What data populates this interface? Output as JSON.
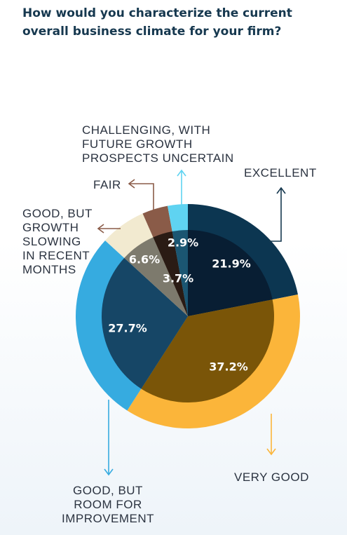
{
  "title": {
    "line1": "How would you characterize the current",
    "line2": "overall business climate for your firm?"
  },
  "chart_data": {
    "type": "pie",
    "title": "How would you characterize the current overall business climate for your firm?",
    "slices": [
      {
        "name": "EXCELLENT",
        "value": 21.9,
        "label": "21.9%",
        "inner_color": "#081e33",
        "outer_color": "#0c3651",
        "text_lines": [
          "EXCELLENT"
        ]
      },
      {
        "name": "VERY GOOD",
        "value": 37.2,
        "label": "37.2%",
        "inner_color": "#7a5508",
        "outer_color": "#fbb53a",
        "text_lines": [
          "VERY GOOD"
        ]
      },
      {
        "name": "GOOD, BUT ROOM FOR IMPROVEMENT",
        "value": 27.7,
        "label": "27.7%",
        "inner_color": "#164666",
        "outer_color": "#36abe0",
        "text_lines": [
          "GOOD, BUT",
          "ROOM FOR",
          "IMPROVEMENT"
        ]
      },
      {
        "name": "GOOD, BUT GROWTH SLOWING IN RECENT MONTHS",
        "value": 6.6,
        "label": "6.6%",
        "inner_color": "#7d7a6d",
        "outer_color": "#f2ead0",
        "text_lines": [
          "GOOD, BUT",
          "GROWTH",
          "SLOWING",
          "IN RECENT",
          "MONTHS"
        ]
      },
      {
        "name": "FAIR",
        "value": 3.7,
        "label": "3.7%",
        "inner_color": "#2a1b14",
        "outer_color": "#8a5b48",
        "text_lines": [
          "FAIR"
        ]
      },
      {
        "name": "CHALLENGING, WITH FUTURE GROWTH PROSPECTS UNCERTAIN",
        "value": 2.9,
        "label": "2.9%",
        "inner_color": "#1b5672",
        "outer_color": "#5fd3f1",
        "text_lines": [
          "CHALLENGING, WITH",
          "FUTURE GROWTH",
          "PROSPECTS UNCERTAIN"
        ]
      }
    ]
  },
  "colors": {
    "title": "#16384f",
    "arrow_excellent": "#16384f",
    "arrow_very_good": "#fbb53a",
    "arrow_room": "#36abe0",
    "arrow_slowing": "#8a5b48",
    "arrow_fair": "#8a5b48",
    "arrow_challenging": "#5fd3f1"
  }
}
